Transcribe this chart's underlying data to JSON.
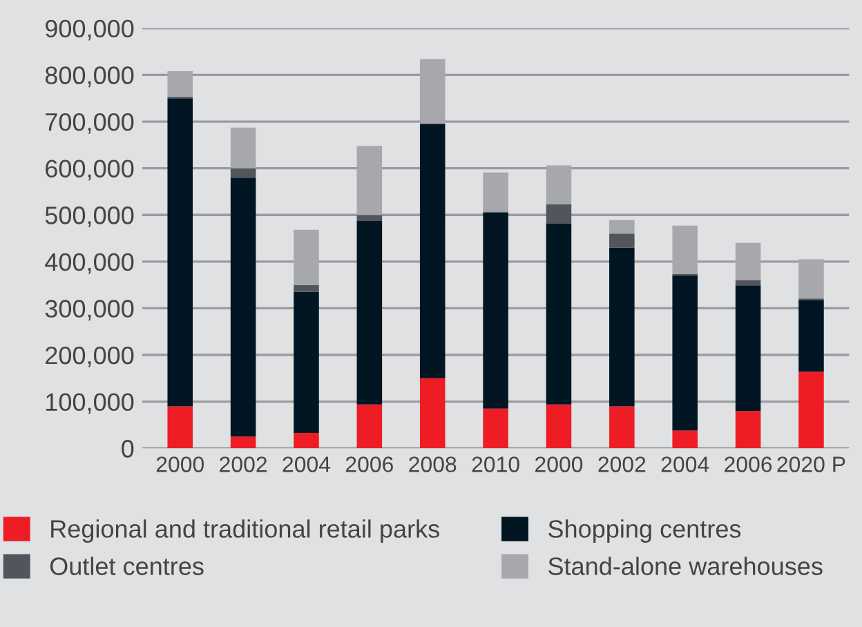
{
  "chart_data": {
    "type": "bar",
    "stacked": true,
    "categories": [
      "2000",
      "2002",
      "2004",
      "2006",
      "2008",
      "2010",
      "2000",
      "2002",
      "2004",
      "2006",
      "2020 P"
    ],
    "series": [
      {
        "name": "Regional and traditional retail parks",
        "color": "#ee1c25",
        "values": [
          90000,
          25000,
          33000,
          94000,
          150000,
          85000,
          94000,
          90000,
          38000,
          80000,
          164000
        ]
      },
      {
        "name": "Shopping centres",
        "color": "#011523",
        "values": [
          660000,
          555000,
          302000,
          393000,
          544000,
          420000,
          387000,
          340000,
          333000,
          269000,
          153000
        ]
      },
      {
        "name": "Outlet centres",
        "color": "#53555d",
        "values": [
          3000,
          20000,
          15000,
          13000,
          2000,
          2000,
          42000,
          30000,
          2000,
          11000,
          4000
        ]
      },
      {
        "name": "Stand-alone warehouses",
        "color": "#a6a8ab",
        "values": [
          55000,
          87000,
          118000,
          148000,
          138000,
          84000,
          83000,
          29000,
          104000,
          80000,
          84000
        ]
      }
    ],
    "ylim": [
      0,
      900000
    ],
    "yticks": [
      {
        "value": 0,
        "label": "0"
      },
      {
        "value": 100000,
        "label": "100,000"
      },
      {
        "value": 200000,
        "label": "200,000"
      },
      {
        "value": 300000,
        "label": "300,000"
      },
      {
        "value": 400000,
        "label": "400,000"
      },
      {
        "value": 500000,
        "label": "500,000"
      },
      {
        "value": 600000,
        "label": "600,000"
      },
      {
        "value": 700000,
        "label": "700,000"
      },
      {
        "value": 800000,
        "label": "800,000"
      },
      {
        "value": 900000,
        "label": "900,000"
      }
    ],
    "grid": "y",
    "legend": "bottom"
  }
}
